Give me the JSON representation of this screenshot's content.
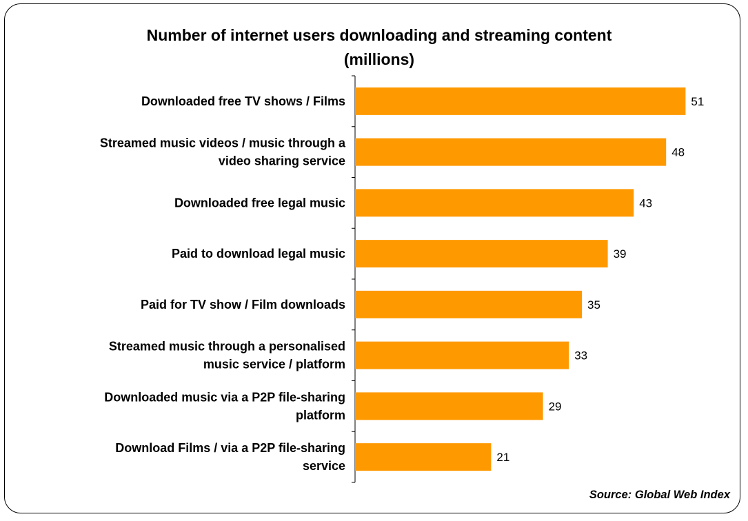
{
  "chart_data": {
    "type": "bar",
    "orientation": "horizontal",
    "title": "Number of internet users downloading and streaming content (millions)",
    "title_lines": [
      "Number of internet users downloading and streaming content",
      "(millions)"
    ],
    "categories": [
      [
        "Downloaded free TV shows / Films"
      ],
      [
        "Streamed music videos / music through a",
        "video sharing service"
      ],
      [
        "Downloaded free legal music"
      ],
      [
        "Paid to download legal music"
      ],
      [
        "Paid for TV show / Film downloads"
      ],
      [
        "Streamed music through a personalised",
        "music service / platform"
      ],
      [
        "Downloaded music via a P2P file-sharing",
        "platform"
      ],
      [
        "Download Films / via a P2P file-sharing",
        "service"
      ]
    ],
    "values": [
      51,
      48,
      43,
      39,
      35,
      33,
      29,
      21
    ],
    "data_labels": [
      "51",
      "48",
      "43",
      "39",
      "35",
      "33",
      "29",
      "21"
    ],
    "xlim": [
      0,
      56
    ],
    "bar_color": "#FF9900",
    "grid": false,
    "legend": "none",
    "source": "Source: Global Web Index"
  }
}
